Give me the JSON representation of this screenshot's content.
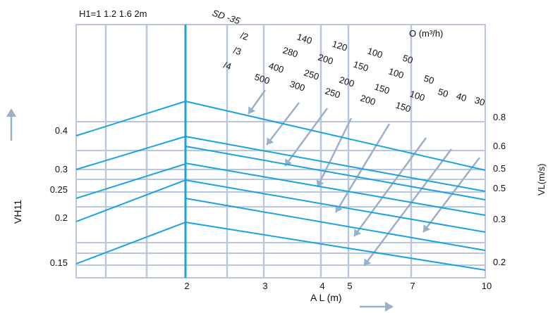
{
  "header": {
    "h_label": "H1=1 1.2 1.6 2m",
    "model_label": "SD -35"
  },
  "legend": {
    "q_label": "O (m³/h)",
    "rows": [
      {
        "prefix": "/2",
        "values": [
          "140",
          "120",
          "100",
          "50",
          "50",
          "40",
          "30"
        ]
      },
      {
        "prefix": "/3",
        "values": [
          "280",
          "200",
          "150",
          "100",
          "50"
        ]
      },
      {
        "prefix": "/4",
        "values": [
          "400",
          "250",
          "200",
          "150",
          "100"
        ]
      },
      {
        "prefix": "",
        "values": [
          "500",
          "300",
          "250",
          "200",
          "150"
        ]
      }
    ]
  },
  "chart_data": {
    "type": "line",
    "xlabel": "A L (m)",
    "ylabel_left": "VH11",
    "ylabel_right": "VL(m/s)",
    "x_ticks": [
      "2",
      "3",
      "4",
      "5",
      "7",
      "10"
    ],
    "left_ticks": [
      "0.4",
      "0.3",
      "0.25",
      "0.2",
      "0.15"
    ],
    "right_ticks": [
      "0.8",
      "0.6",
      "0.5",
      "0.5",
      "0.3",
      "0.2"
    ],
    "colors": {
      "line": "#1aa3dd",
      "grid": "#b8c8da",
      "arrow": "#9bb0c8"
    }
  }
}
